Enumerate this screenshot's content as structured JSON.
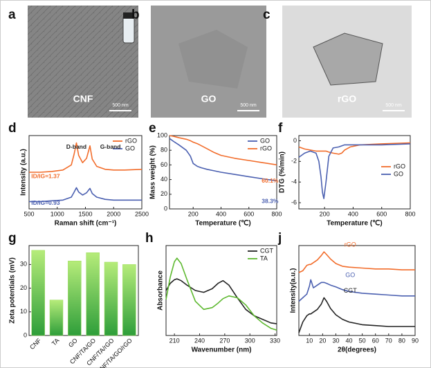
{
  "images": [
    {
      "panel": "a",
      "label": "CNF",
      "scale": "500 nm"
    },
    {
      "panel": "b",
      "label": "GO",
      "scale": "500 nm"
    },
    {
      "panel": "c",
      "label": "rGO",
      "scale": "500 nm"
    }
  ],
  "chart_data": [
    {
      "panel": "d",
      "type": "line",
      "xlabel": "Raman shift (cm⁻¹)",
      "ylabel": "Intensity (a.u.)",
      "x": [
        500,
        700,
        900,
        1100,
        1250,
        1300,
        1340,
        1380,
        1450,
        1520,
        1580,
        1620,
        1700,
        1850,
        2000,
        2200,
        2500
      ],
      "series": [
        {
          "name": "rGO",
          "color": "#f26c2a",
          "values": [
            5.0,
            5.0,
            5.1,
            5.3,
            6.0,
            7.5,
            9.0,
            7.3,
            6.3,
            6.9,
            8.6,
            6.8,
            5.8,
            5.4,
            5.3,
            5.3,
            5.4
          ]
        },
        {
          "name": "GO",
          "color": "#4a5fb0",
          "values": [
            1.0,
            1.0,
            1.1,
            1.2,
            1.6,
            2.3,
            2.9,
            2.3,
            1.9,
            2.2,
            2.8,
            2.1,
            1.6,
            1.3,
            1.2,
            1.2,
            1.2
          ]
        }
      ],
      "xlim": [
        500,
        2500
      ],
      "xticks": [
        500,
        1000,
        1500,
        2000,
        2500
      ],
      "ylim": [
        0,
        10
      ],
      "legend": "upper-right",
      "annotations": [
        {
          "text": "D-band",
          "color": "#222"
        },
        {
          "text": "G-band",
          "color": "#222"
        },
        {
          "text": "ID/IG=1.37",
          "color": "#f26c2a"
        },
        {
          "text": "ID/IG=0.93",
          "color": "#4a5fb0"
        }
      ]
    },
    {
      "panel": "e",
      "type": "line",
      "xlabel": "Temperature (℃)",
      "ylabel": "Mass weight (%)",
      "x": [
        30,
        60,
        100,
        150,
        180,
        200,
        230,
        260,
        300,
        350,
        400,
        500,
        600,
        700,
        800
      ],
      "series": [
        {
          "name": "GO",
          "color": "#4a5fb0",
          "values": [
            96,
            92,
            87,
            80,
            72,
            62,
            58,
            56,
            54,
            52,
            50,
            47,
            44,
            41,
            38.3
          ]
        },
        {
          "name": "rGO",
          "color": "#f26c2a",
          "values": [
            100,
            99,
            97,
            95,
            93,
            91,
            89,
            86,
            82,
            77,
            73,
            69,
            66,
            63,
            60.1
          ]
        }
      ],
      "xlim": [
        30,
        800
      ],
      "xticks": [
        200,
        400,
        600,
        800
      ],
      "ylim": [
        0,
        100
      ],
      "yticks": [
        0,
        20,
        40,
        60,
        80,
        100
      ],
      "legend": "upper-right",
      "annotations": [
        {
          "text": "60.1%",
          "color": "#f26c2a"
        },
        {
          "text": "38.3%",
          "color": "#4a5fb0"
        }
      ]
    },
    {
      "panel": "f",
      "type": "line",
      "xlabel": "Temperature (℃)",
      "ylabel": "DTG (%/min)",
      "x": [
        20,
        60,
        100,
        140,
        160,
        175,
        185,
        195,
        210,
        230,
        260,
        300,
        320,
        340,
        380,
        450,
        600,
        800
      ],
      "series": [
        {
          "name": "rGO",
          "color": "#f26c2a",
          "values": [
            -0.6,
            -0.8,
            -0.9,
            -1.0,
            -1.0,
            -1.0,
            -1.0,
            -1.0,
            -1.0,
            -1.1,
            -1.2,
            -1.3,
            -1.2,
            -0.9,
            -0.6,
            -0.4,
            -0.3,
            -0.2
          ]
        },
        {
          "name": "GO",
          "color": "#4a5fb0",
          "values": [
            -1.6,
            -1.2,
            -1.0,
            -1.2,
            -2.0,
            -3.5,
            -5.0,
            -5.6,
            -4.0,
            -1.5,
            -0.7,
            -0.6,
            -0.5,
            -0.4,
            -0.4,
            -0.4,
            -0.4,
            -0.3
          ]
        }
      ],
      "xlim": [
        20,
        800
      ],
      "xticks": [
        200,
        400,
        600,
        800
      ],
      "ylim": [
        -6.6,
        0.5
      ],
      "yticks": [
        -6,
        -4,
        -2,
        0
      ],
      "legend": "center-right"
    },
    {
      "panel": "g",
      "type": "bar",
      "ylabel": "Zeta potentials (mV)",
      "categories": [
        "CNF",
        "TA",
        "GO",
        "CNF/TA/GO",
        "CNF/TA/rGO",
        "CNF/TA/GO/rGO"
      ],
      "values": [
        36,
        15,
        31.5,
        35,
        31,
        30
      ],
      "color": "#9bdc5a",
      "ylim": [
        0,
        38
      ],
      "yticks": [
        0,
        10,
        20,
        30
      ]
    },
    {
      "panel": "h",
      "type": "line",
      "xlabel": "Wavenumber (nm)",
      "ylabel": "Absorbance",
      "x": [
        200,
        205,
        210,
        213,
        218,
        225,
        235,
        245,
        255,
        262,
        268,
        275,
        285,
        295,
        305,
        315,
        325,
        332
      ],
      "series": [
        {
          "name": "CGT",
          "color": "#222222",
          "values": [
            5.0,
            5.8,
            6.2,
            6.3,
            6.1,
            5.6,
            5.0,
            4.8,
            5.2,
            5.8,
            6.1,
            5.6,
            4.2,
            2.9,
            2.2,
            1.8,
            1.4,
            1.3
          ]
        },
        {
          "name": "TA",
          "color": "#5cb82e",
          "values": [
            4.0,
            6.5,
            8.2,
            8.6,
            8.0,
            6.2,
            3.8,
            2.9,
            3.1,
            3.6,
            4.1,
            4.4,
            4.2,
            3.4,
            2.2,
            1.4,
            0.8,
            0.6
          ]
        }
      ],
      "xlim": [
        200,
        332
      ],
      "xticks": [
        210,
        240,
        270,
        300,
        330
      ],
      "ylim": [
        0,
        10
      ],
      "legend": "upper-right"
    },
    {
      "panel": "j",
      "type": "line",
      "xlabel": "2θ(degrees)",
      "ylabel": "Intensity(a.u.)",
      "x": [
        2,
        5,
        8,
        10,
        11,
        13,
        16,
        19,
        21,
        23,
        26,
        30,
        35,
        40,
        50,
        60,
        70,
        80,
        90
      ],
      "series": [
        {
          "name": "rGO",
          "color": "#f26c2a",
          "values": [
            7.0,
            7.2,
            7.8,
            7.9,
            7.9,
            8.1,
            8.4,
            8.9,
            9.3,
            9.0,
            8.5,
            8.0,
            7.7,
            7.6,
            7.5,
            7.4,
            7.4,
            7.3,
            7.3
          ]
        },
        {
          "name": "GO",
          "color": "#4a5fb0",
          "values": [
            3.8,
            4.2,
            4.6,
            5.5,
            6.2,
            5.3,
            5.6,
            5.9,
            5.9,
            5.8,
            5.6,
            5.4,
            5.1,
            4.9,
            4.7,
            4.6,
            4.5,
            4.4,
            4.4
          ]
        },
        {
          "name": "CGT",
          "color": "#222222",
          "values": [
            0.3,
            1.5,
            2.2,
            2.4,
            2.4,
            2.6,
            2.9,
            3.5,
            4.2,
            3.8,
            3.0,
            2.3,
            1.8,
            1.5,
            1.2,
            1.1,
            1.0,
            1.0,
            1.0
          ]
        }
      ],
      "xlim": [
        2,
        90
      ],
      "xticks": [
        10,
        20,
        30,
        40,
        50,
        60,
        70,
        80,
        90
      ],
      "ylim": [
        0,
        10
      ],
      "legend": "inline"
    }
  ]
}
